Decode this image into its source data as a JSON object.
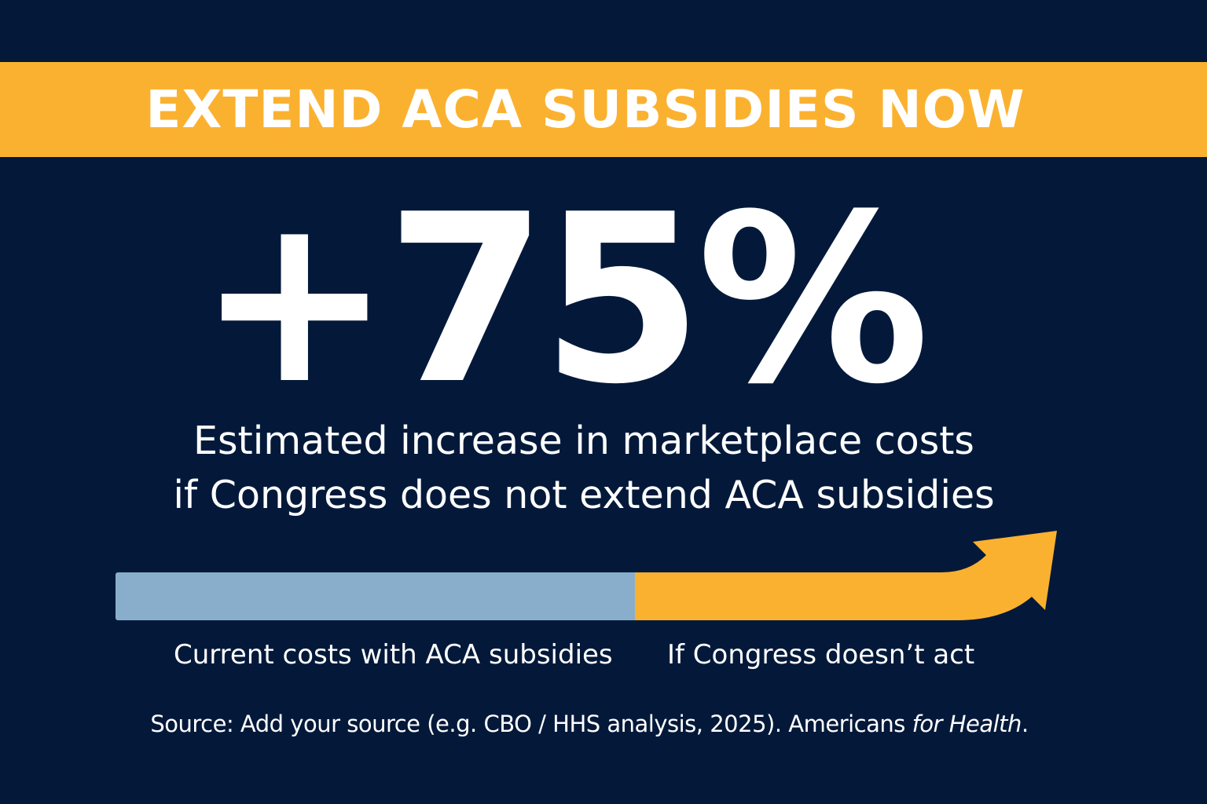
{
  "banner": {
    "text": "EXTEND ACA SUBSIDIES NOW",
    "color": "#fbb130"
  },
  "headline": {
    "stat": "+75%"
  },
  "subtitle": {
    "line1": "Estimated increase in marketplace costs",
    "line2": "if Congress does not extend ACA subsidies"
  },
  "comparison": {
    "current_label": "Current costs with ACA subsidies",
    "current_color": "#89aecb",
    "future_label": "If Congress doesn’t act",
    "future_color": "#fbb130",
    "icon": "up-right-arrow-icon"
  },
  "source": {
    "text_before": "Source: Add your source (e.g. CBO / HHS analysis, 2025). Americans ",
    "text_italic_for": "for",
    "text_space": " ",
    "text_italic_health": "Health",
    "text_after": "."
  },
  "colors": {
    "background": "#04193a",
    "text": "#ffffff"
  }
}
